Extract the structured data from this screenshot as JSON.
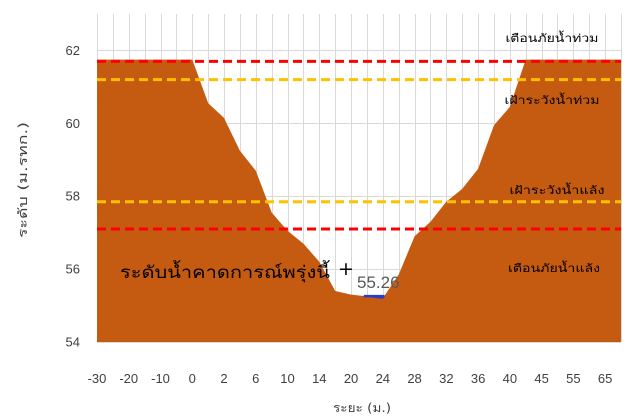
{
  "chart_data": {
    "type": "area",
    "xlabel": "ระยะ (ม.)",
    "ylabel": "ระดับ (ม.รทก.)",
    "ylim": [
      54,
      63
    ],
    "yticks": [
      54,
      56,
      58,
      60,
      62
    ],
    "grid": true,
    "categories": [
      "-30",
      "",
      "-20",
      "",
      "-10",
      "",
      "0",
      "",
      "2",
      "",
      "6",
      "",
      "10",
      "",
      "14",
      "",
      "20",
      "",
      "24",
      "",
      "28",
      "",
      "32",
      "",
      "36",
      "",
      "40",
      "",
      "45",
      "",
      "55",
      "",
      "65",
      ""
    ],
    "series": [
      {
        "color": "#C55A11",
        "values": [
          61.75,
          61.75,
          61.75,
          61.75,
          61.75,
          61.75,
          61.75,
          60.55,
          60.15,
          59.25,
          58.7,
          57.55,
          57.05,
          56.7,
          56.2,
          55.4,
          55.3,
          55.25,
          55.2,
          55.85,
          56.9,
          57.3,
          57.85,
          58.2,
          58.75,
          59.95,
          60.45,
          61.75,
          61.75,
          61.75,
          61.75,
          61.75,
          61.75,
          61.75
        ]
      }
    ],
    "water_level": {
      "value": 55.26,
      "color": "#2E3BC9"
    },
    "thresholds": [
      {
        "label": "เตือนภัยน้ำท่วม",
        "value": 61.7,
        "color": "#FF0000"
      },
      {
        "label": "เฝ้าระวังน้ำท่วม",
        "value": 61.2,
        "color": "#FFC000"
      },
      {
        "label": "เฝ้าระวังน้ำแล้ง",
        "value": 57.85,
        "color": "#FFC000"
      },
      {
        "label": "เตือนภัยน้ำแล้ง",
        "value": 57.1,
        "color": "#FF0000"
      }
    ],
    "annotation": {
      "text": "ระดับน้ำคาดการณ์พรุ่งนี้",
      "marker": "+",
      "value_label": "55.26"
    }
  }
}
